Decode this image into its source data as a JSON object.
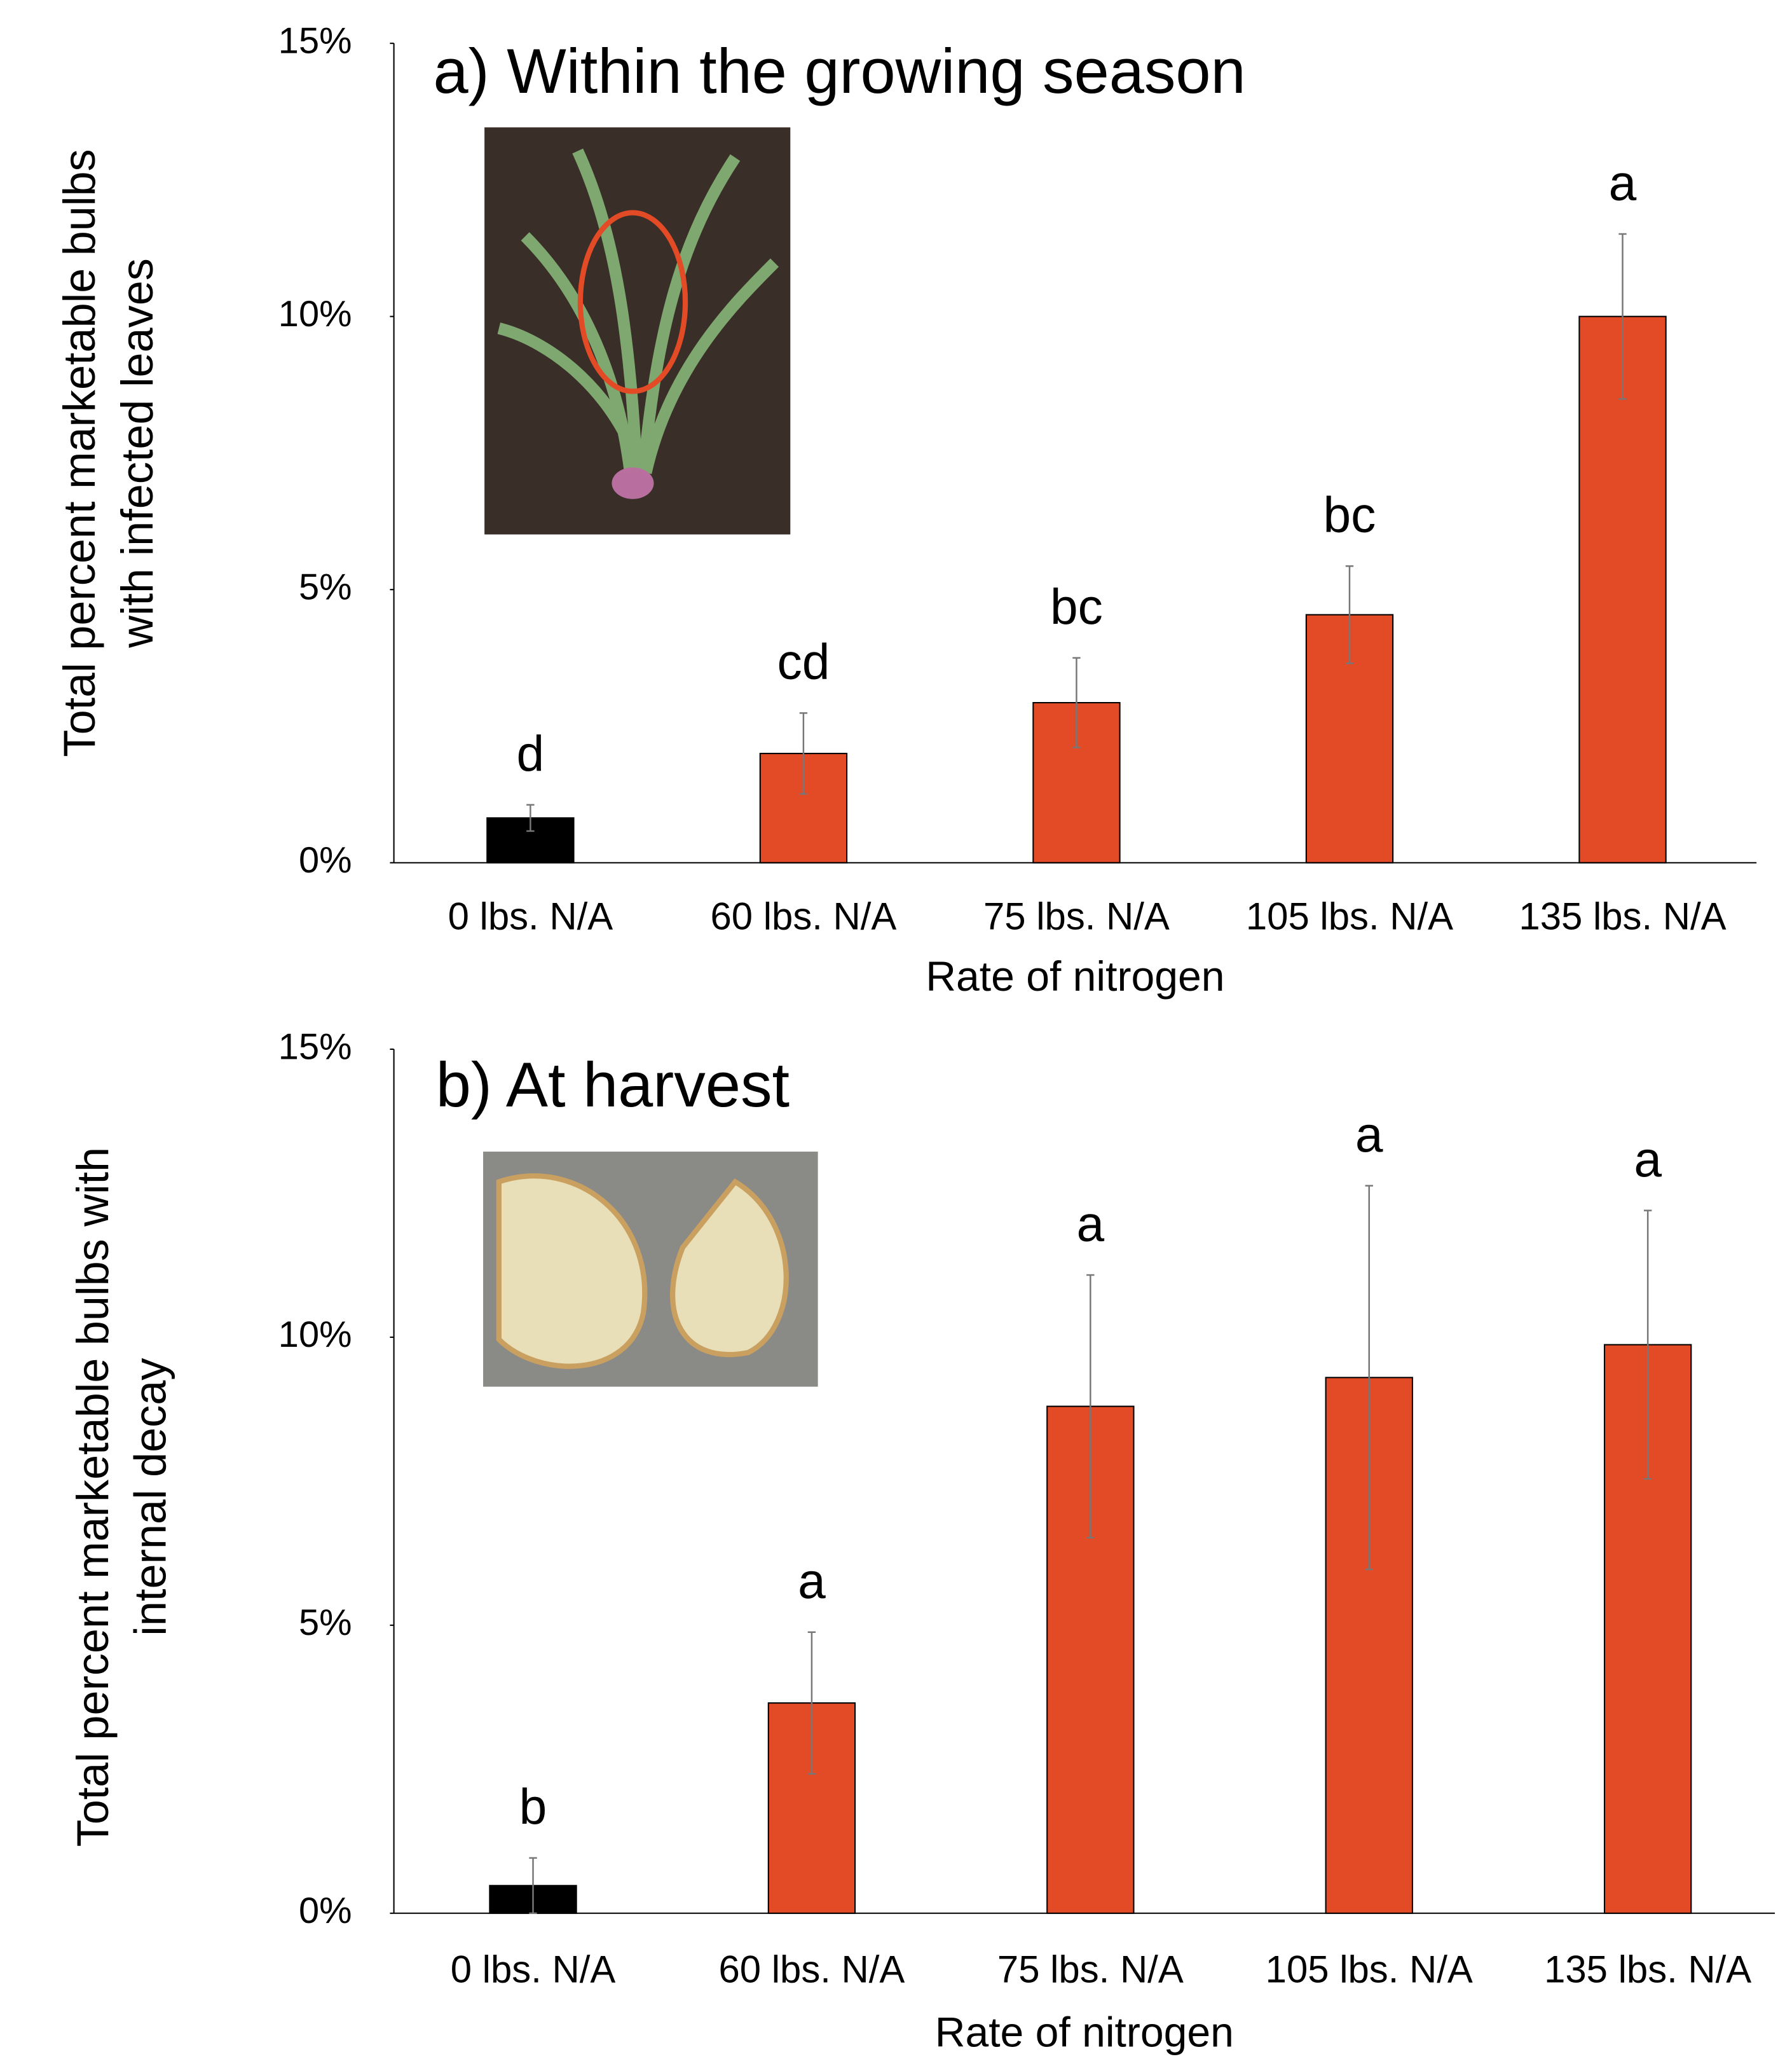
{
  "chart_data": [
    {
      "type": "bar",
      "title": "a) Within the growing season",
      "ylabel": [
        "Total percent marketable bulbs",
        "with infected leaves"
      ],
      "xlabel": "Rate of nitrogen",
      "categories": [
        "0 lbs. N/A",
        "60 lbs. N/A",
        "75 lbs. N/A",
        "105 lbs. N/A",
        "135 lbs. N/A"
      ],
      "values": [
        0.82,
        2.0,
        2.93,
        4.54,
        10.0
      ],
      "errors": [
        0.24,
        0.74,
        0.82,
        0.89,
        1.51
      ],
      "annotations": [
        "d",
        "cd",
        "bc",
        "bc",
        "a"
      ],
      "colors": [
        "#000000",
        "#e34a26",
        "#e34a26",
        "#e34a26",
        "#e34a26"
      ],
      "ylim": [
        0,
        15
      ],
      "yticks": [
        {
          "value": 0,
          "label": "0%"
        },
        {
          "value": 5,
          "label": "5%"
        },
        {
          "value": 10,
          "label": "10%"
        },
        {
          "value": 15,
          "label": "15%"
        }
      ],
      "grid": false
    },
    {
      "type": "bar",
      "title": "b) At harvest",
      "ylabel": [
        "Total percent marketable bulbs with",
        "internal decay"
      ],
      "xlabel": "Rate of nitrogen",
      "categories": [
        "0 lbs. N/A",
        "60 lbs. N/A",
        "75 lbs. N/A",
        "105 lbs. N/A",
        "135 lbs. N/A"
      ],
      "values": [
        0.48,
        3.65,
        8.8,
        9.3,
        9.87
      ],
      "errors": [
        0.48,
        1.23,
        2.28,
        3.33,
        2.33
      ],
      "annotations": [
        "b",
        "a",
        "a",
        "a",
        "a"
      ],
      "colors": [
        "#000000",
        "#e34a26",
        "#e34a26",
        "#e34a26",
        "#e34a26"
      ],
      "ylim": [
        0,
        15
      ],
      "yticks": [
        {
          "value": 0,
          "label": "0%"
        },
        {
          "value": 5,
          "label": "5%"
        },
        {
          "value": 10,
          "label": "10%"
        },
        {
          "value": 15,
          "label": "15%"
        }
      ],
      "grid": false
    }
  ]
}
